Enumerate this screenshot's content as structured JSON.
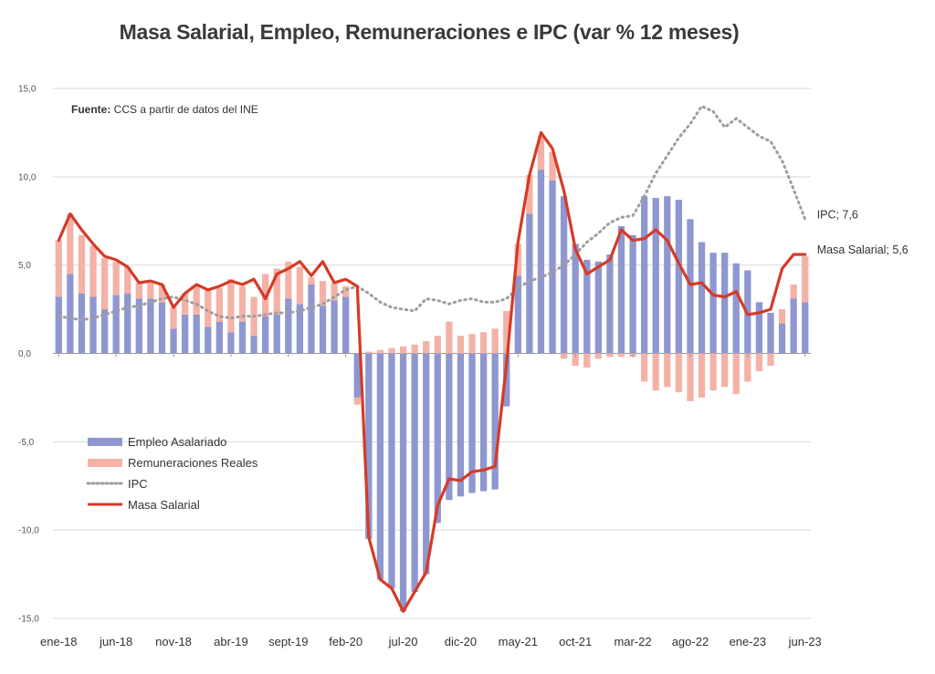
{
  "chart_data": {
    "type": "bar",
    "title": "Masa Salarial, Empleo, Remuneraciones e IPC (var % 12 meses)",
    "source_label": "Fuente:",
    "source_text": " CCS a partir de datos del INE",
    "ylim": [
      -15,
      15
    ],
    "y_ticks": [
      "15,0",
      "10,0",
      "5,0",
      "0,0",
      "-5,0",
      "-10,0",
      "-15,0"
    ],
    "y_tick_values": [
      15,
      10,
      5,
      0,
      -5,
      -10,
      -15
    ],
    "x_tick_labels": [
      "ene-18",
      "jun-18",
      "nov-18",
      "abr-19",
      "sept-19",
      "feb-20",
      "jul-20",
      "dic-20",
      "may-21",
      "oct-21",
      "mar-22",
      "ago-22",
      "ene-23",
      "jun-23"
    ],
    "x_tick_indices": [
      0,
      5,
      10,
      15,
      20,
      25,
      30,
      35,
      40,
      45,
      50,
      55,
      60,
      65
    ],
    "categories": [
      "ene-18",
      "feb-18",
      "mar-18",
      "abr-18",
      "may-18",
      "jun-18",
      "jul-18",
      "ago-18",
      "sept-18",
      "oct-18",
      "nov-18",
      "dic-18",
      "ene-19",
      "feb-19",
      "mar-19",
      "abr-19",
      "may-19",
      "jun-19",
      "jul-19",
      "ago-19",
      "sept-19",
      "oct-19",
      "nov-19",
      "dic-19",
      "ene-20",
      "feb-20",
      "mar-20",
      "abr-20",
      "may-20",
      "jun-20",
      "jul-20",
      "ago-20",
      "sept-20",
      "oct-20",
      "nov-20",
      "dic-20",
      "ene-21",
      "feb-21",
      "mar-21",
      "abr-21",
      "may-21",
      "jun-21",
      "jul-21",
      "ago-21",
      "sept-21",
      "oct-21",
      "nov-21",
      "dic-21",
      "ene-22",
      "feb-22",
      "mar-22",
      "abr-22",
      "may-22",
      "jun-22",
      "jul-22",
      "ago-22",
      "sept-22",
      "oct-22",
      "nov-22",
      "dic-22",
      "ene-23",
      "feb-23",
      "mar-23",
      "abr-23",
      "may-23",
      "jun-23"
    ],
    "grid": true,
    "legend_position": "bottom-left",
    "series": [
      {
        "name": "Empleo Asalariado",
        "type": "bar",
        "color": "#8e97cf",
        "values": [
          3.2,
          4.5,
          3.4,
          3.2,
          2.5,
          3.3,
          3.4,
          3.1,
          3.1,
          2.9,
          1.4,
          2.2,
          2.2,
          1.5,
          1.8,
          1.2,
          1.8,
          1.0,
          2.1,
          2.2,
          3.1,
          2.8,
          3.9,
          2.7,
          3.0,
          3.2,
          -2.5,
          -10.5,
          -12.8,
          -13.3,
          -14.6,
          -13.5,
          -12.5,
          -9.6,
          -8.3,
          -8.1,
          -7.9,
          -7.8,
          -7.7,
          -3.0,
          4.4,
          7.9,
          10.4,
          9.8,
          8.9,
          6.2,
          5.3,
          5.2,
          5.6,
          7.2,
          6.7,
          8.9,
          8.8,
          8.9,
          8.7,
          7.6,
          6.3,
          5.7,
          5.7,
          5.1,
          4.7,
          2.9,
          2.3,
          1.7,
          3.1,
          2.9
        ]
      },
      {
        "name": "Remuneraciones Reales",
        "type": "bar",
        "color": "#f4b2a7",
        "values": [
          3.2,
          3.4,
          3.3,
          2.9,
          2.9,
          1.9,
          1.5,
          0.9,
          0.9,
          1.0,
          1.2,
          1.2,
          1.7,
          2.1,
          1.9,
          3.0,
          2.0,
          2.2,
          2.4,
          2.6,
          2.1,
          2.1,
          0.4,
          1.4,
          1.0,
          0.6,
          -0.4,
          0.1,
          0.2,
          0.3,
          0.4,
          0.5,
          0.7,
          1.0,
          1.8,
          1.0,
          1.1,
          1.2,
          1.4,
          2.4,
          1.8,
          2.2,
          1.9,
          1.6,
          -0.3,
          -0.7,
          -0.8,
          -0.3,
          -0.2,
          -0.2,
          -0.2,
          -1.6,
          -2.1,
          -1.9,
          -2.2,
          -2.7,
          -2.5,
          -2.1,
          -1.9,
          -2.3,
          -1.6,
          -1.0,
          -0.7,
          0.8,
          0.8,
          2.6
        ]
      },
      {
        "name": "IPC",
        "type": "line",
        "style": "dotted",
        "color": "#9e9e9e",
        "values": [
          2.1,
          2.0,
          1.9,
          2.0,
          2.2,
          2.4,
          2.6,
          2.7,
          2.9,
          3.1,
          3.2,
          3.0,
          2.8,
          2.4,
          2.1,
          2.0,
          2.1,
          2.1,
          2.2,
          2.3,
          2.3,
          2.4,
          2.6,
          2.8,
          3.2,
          3.6,
          3.8,
          3.4,
          2.9,
          2.6,
          2.5,
          2.4,
          3.1,
          3.0,
          2.8,
          3.0,
          3.1,
          2.9,
          2.9,
          3.1,
          3.7,
          4.1,
          4.3,
          4.6,
          5.0,
          5.6,
          6.3,
          6.8,
          7.4,
          7.7,
          7.8,
          8.9,
          10.2,
          11.2,
          12.2,
          13.0,
          14.0,
          13.7,
          12.8,
          13.3,
          12.8,
          12.3,
          12.0,
          10.9,
          9.3,
          7.6
        ]
      },
      {
        "name": "Masa Salarial",
        "type": "line",
        "style": "solid",
        "color": "#d63a26",
        "values": [
          6.4,
          7.9,
          7.0,
          6.2,
          5.5,
          5.3,
          4.9,
          4.0,
          4.1,
          3.9,
          2.6,
          3.4,
          3.9,
          3.6,
          3.8,
          4.1,
          3.9,
          4.2,
          3.1,
          4.5,
          4.8,
          5.2,
          4.4,
          5.2,
          4.0,
          4.2,
          3.8,
          -10.4,
          -12.8,
          -13.3,
          -14.6,
          -13.5,
          -12.4,
          -8.6,
          -7.1,
          -7.2,
          -6.7,
          -6.6,
          -6.4,
          -0.6,
          6.3,
          10.1,
          12.5,
          11.6,
          9.2,
          5.9,
          4.5,
          4.9,
          5.3,
          7.0,
          6.4,
          6.5,
          7.0,
          6.4,
          5.1,
          3.9,
          4.0,
          3.3,
          3.2,
          3.5,
          2.2,
          2.3,
          2.5,
          4.8,
          5.6,
          5.6
        ]
      }
    ],
    "end_labels": [
      {
        "series": "IPC",
        "text": "IPC; 7,6"
      },
      {
        "series": "Masa Salarial",
        "text": "Masa Salarial; 5,6"
      }
    ]
  }
}
